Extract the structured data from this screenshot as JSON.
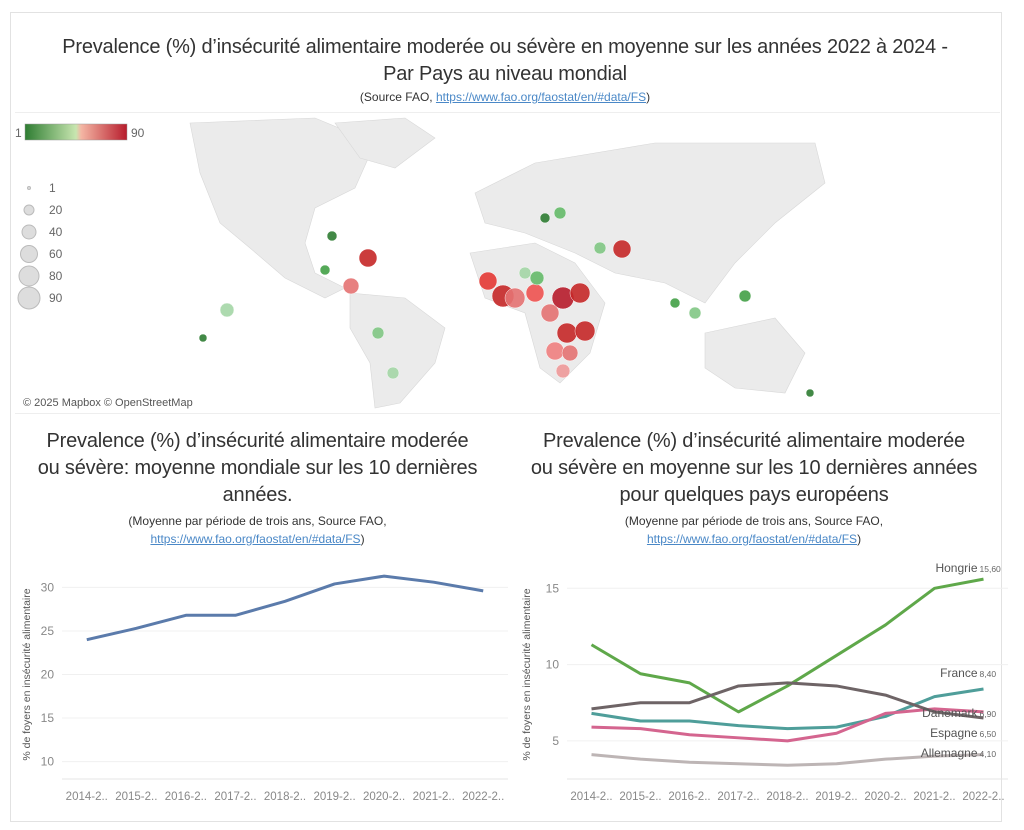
{
  "map_section": {
    "title_line1": "Prevalence (%) d’insécurité alimentaire moderée ou sévère en moyenne sur les années 2022 à 2024 -",
    "title_line2": "Par Pays au niveau mondial",
    "source_prefix": "(Source FAO, ",
    "source_link": "https://www.fao.org/faostat/en/#data/FS",
    "source_suffix": ")",
    "color_legend": {
      "min": "1",
      "max": "90",
      "low_color": "#2e7d32",
      "mid_color": "#c8e6b0",
      "high_color": "#b71c2c"
    },
    "size_legend": [
      "1",
      "20",
      "40",
      "60",
      "80",
      "90"
    ],
    "attribution": "© 2025 Mapbox © OpenStreetMap"
  },
  "chart_data": [
    {
      "type": "line",
      "title_lines": [
        "Prevalence (%) d’insécurité alimentaire moderée",
        "ou sévère: moyenne mondiale sur les 10 dernières",
        "années."
      ],
      "subtitle": "(Moyenne par période de trois ans, Source FAO,",
      "source_link": "https://www.fao.org/faostat/en/#data/FS",
      "source_suffix": ")",
      "ylabel": "% de foyers en insécurité alimentaire",
      "categories": [
        "2014-2..",
        "2015-2..",
        "2016-2..",
        "2017-2..",
        "2018-2..",
        "2019-2..",
        "2020-2..",
        "2021-2..",
        "2022-2.."
      ],
      "yticks": [
        10,
        15,
        20,
        25,
        30
      ],
      "ylim": [
        8,
        32
      ],
      "grid": true,
      "series": [
        {
          "color": "#5b7bab",
          "values": [
            24.0,
            25.3,
            26.8,
            26.8,
            28.4,
            30.4,
            31.3,
            30.6,
            29.6
          ]
        }
      ]
    },
    {
      "type": "line",
      "title_lines": [
        "Prevalence (%) d’insécurité alimentaire moderée",
        "ou sévère en moyenne sur les 10 dernières années",
        "pour quelques pays européens"
      ],
      "subtitle": "(Moyenne par période de trois ans, Source FAO,",
      "source_link": "https://www.fao.org/faostat/en/#data/FS",
      "source_suffix": ")",
      "ylabel": "% de foyers en insécurité alimentaire",
      "categories": [
        "2014-2..",
        "2015-2..",
        "2016-2..",
        "2017-2..",
        "2018-2..",
        "2019-2..",
        "2020-2..",
        "2021-2..",
        "2022-2.."
      ],
      "yticks": [
        5,
        10,
        15
      ],
      "ylim": [
        2.5,
        16.2
      ],
      "grid": true,
      "series": [
        {
          "name": "Hongrie",
          "end_label": "15,60",
          "color": "#5fa84a",
          "values": [
            11.3,
            9.4,
            8.8,
            6.9,
            8.6,
            10.6,
            12.6,
            15.0,
            15.6
          ]
        },
        {
          "name": "France",
          "end_label": "8,40",
          "color": "#4f9e9a",
          "values": [
            6.8,
            6.3,
            6.3,
            6.0,
            5.8,
            5.9,
            6.6,
            7.9,
            8.4
          ]
        },
        {
          "name": "Danemark",
          "end_label": "6,90",
          "color": "#d4658f",
          "values": [
            5.9,
            5.8,
            5.4,
            5.2,
            5.0,
            5.5,
            6.8,
            7.1,
            6.9
          ]
        },
        {
          "name": "Espagne",
          "end_label": "6,50",
          "color": "#6e6466",
          "values": [
            7.1,
            7.5,
            7.5,
            8.6,
            8.8,
            8.6,
            8.0,
            6.9,
            6.5
          ]
        },
        {
          "name": "Allemagne",
          "end_label": "4,10",
          "color": "#bdb5b5",
          "values": [
            4.1,
            3.8,
            3.6,
            3.5,
            3.4,
            3.5,
            3.8,
            4.0,
            4.1
          ]
        }
      ]
    }
  ]
}
